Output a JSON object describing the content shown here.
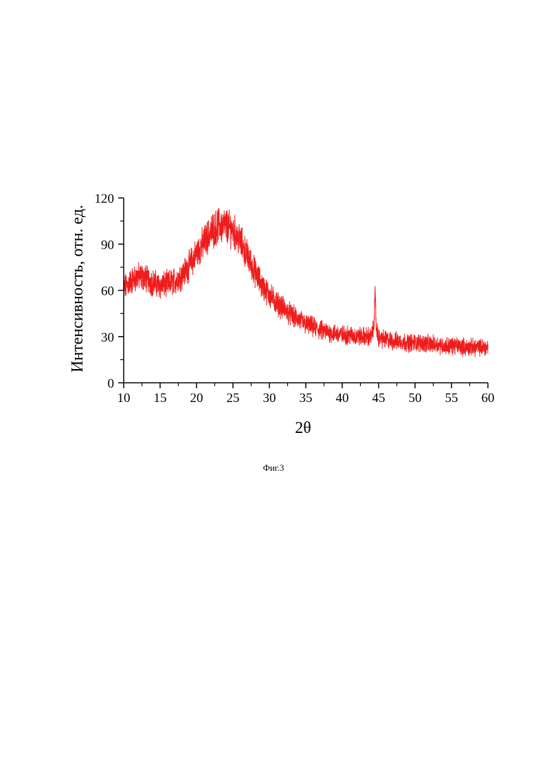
{
  "caption": "Фиг.3",
  "chart_data": {
    "type": "line",
    "title": "",
    "xlabel": "2θ",
    "ylabel": "Интенсивность, отн. ед.",
    "xlim": [
      10,
      60
    ],
    "ylim": [
      0,
      120
    ],
    "xticks": [
      10,
      15,
      20,
      25,
      30,
      35,
      40,
      45,
      50,
      55,
      60
    ],
    "xtick_labels": [
      "10",
      "15",
      "20",
      "25",
      "30",
      "35",
      "40",
      "45",
      "50",
      "55",
      "60"
    ],
    "yticks": [
      0,
      30,
      60,
      90,
      120
    ],
    "ytick_labels": [
      "0",
      "30",
      "60",
      "90",
      "120"
    ],
    "grid": false,
    "legend": "none",
    "color": "#ee1c1c",
    "series": [
      {
        "x": [
          10,
          11,
          12,
          13,
          14,
          15,
          16,
          17,
          18,
          19,
          20,
          21,
          22,
          23,
          24,
          25,
          26,
          27,
          28,
          29,
          30,
          31,
          32,
          33,
          34,
          35,
          36,
          37,
          38,
          39,
          40,
          41,
          42,
          43,
          44,
          44.3,
          44.5,
          44.7,
          45,
          46,
          47,
          48,
          49,
          50,
          51,
          52,
          53,
          54,
          55,
          56,
          57,
          58,
          59,
          60
        ],
        "y": [
          61,
          66,
          69,
          68,
          65,
          63,
          64,
          66,
          70,
          76,
          84,
          91,
          98,
          102,
          102,
          99,
          92,
          82,
          72,
          63,
          57,
          52,
          48,
          44,
          41,
          38,
          36,
          34,
          33,
          32,
          31,
          31,
          30,
          30,
          30,
          35,
          56,
          35,
          29,
          28,
          27,
          27,
          26,
          26,
          26,
          25,
          25,
          24,
          24,
          24,
          23,
          23,
          23,
          23
        ]
      }
    ]
  }
}
